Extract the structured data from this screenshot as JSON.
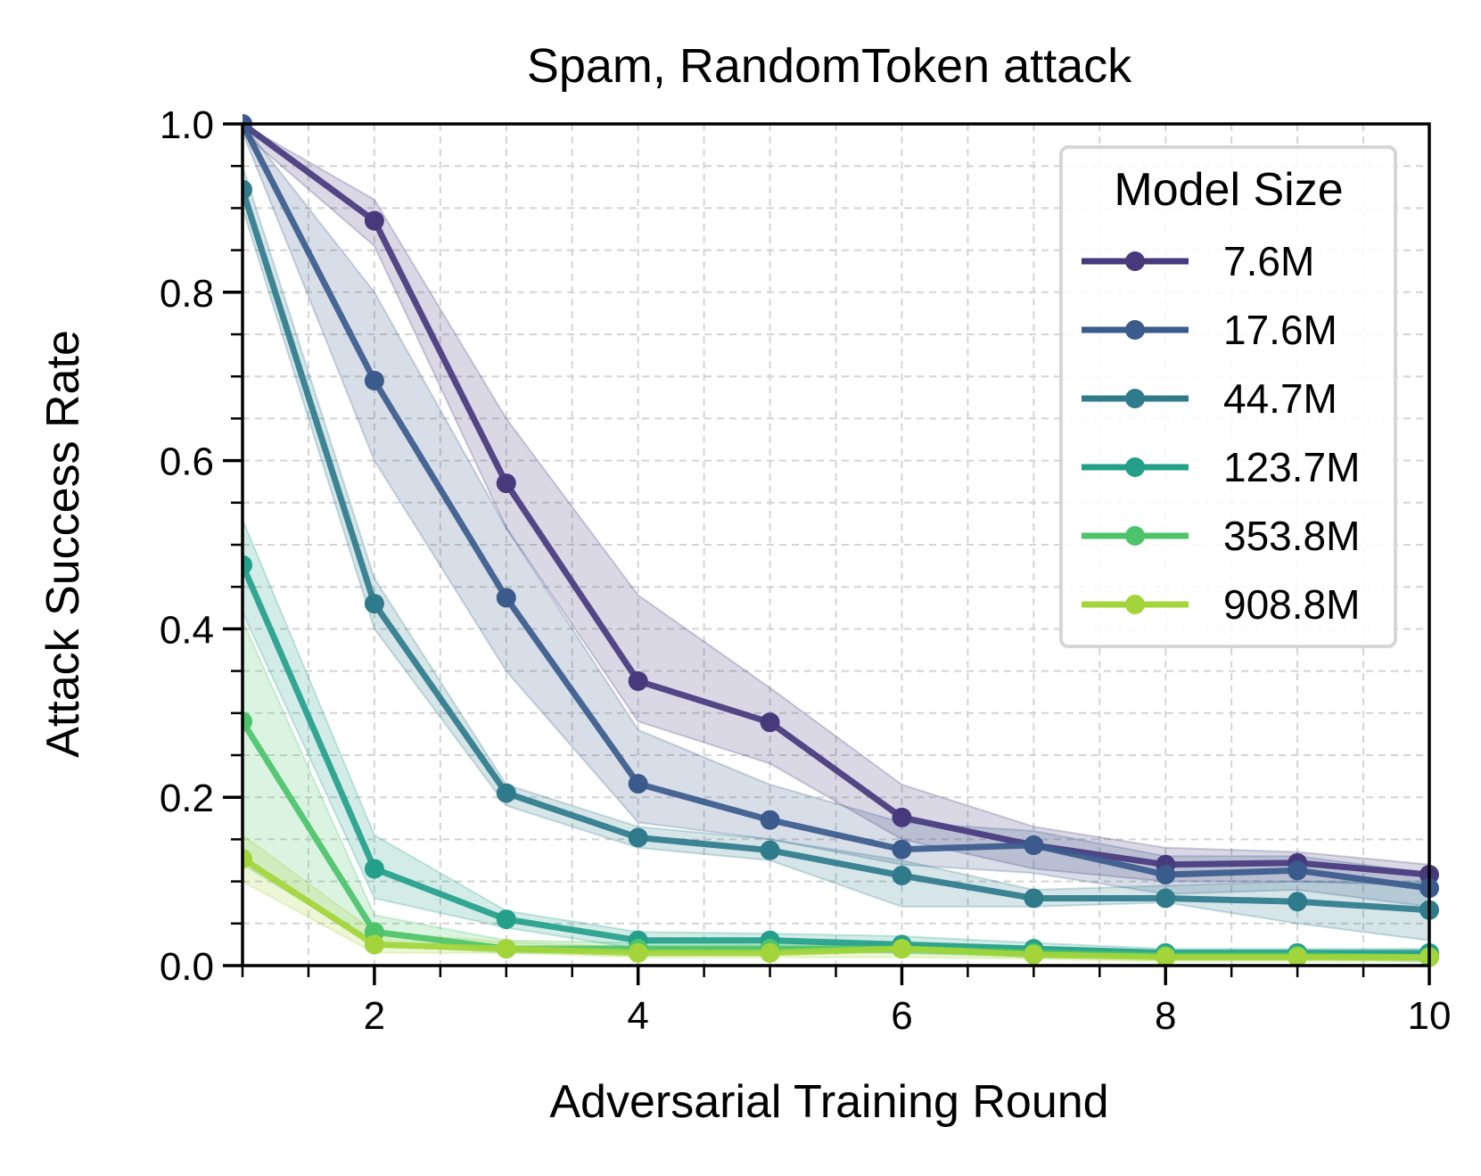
{
  "chart_data": {
    "type": "line",
    "title": "Spam, RandomToken attack",
    "xlabel": "Adversarial Training Round",
    "ylabel": "Attack Success Rate",
    "xlim": [
      1,
      10
    ],
    "ylim": [
      0,
      1
    ],
    "xticks": [
      2,
      4,
      6,
      8,
      10
    ],
    "yticks": [
      0.0,
      0.2,
      0.4,
      0.6,
      0.8,
      1.0
    ],
    "ytick_labels": [
      "0.0",
      "0.2",
      "0.4",
      "0.6",
      "0.8",
      "1.0"
    ],
    "grid": true,
    "legend": {
      "title": "Model Size",
      "position": "top-right"
    },
    "x": [
      1,
      2,
      3,
      4,
      5,
      6,
      7,
      8,
      9,
      10
    ],
    "series": [
      {
        "name": "7.6M",
        "color": "#463a7d",
        "values": [
          1.0,
          0.885,
          0.573,
          0.338,
          0.289,
          0.176,
          0.143,
          0.12,
          0.122,
          0.108
        ],
        "lower": [
          0.99,
          0.855,
          0.52,
          0.29,
          0.24,
          0.15,
          0.115,
          0.1,
          0.1,
          0.095
        ],
        "upper": [
          1.0,
          0.91,
          0.65,
          0.44,
          0.33,
          0.215,
          0.165,
          0.14,
          0.135,
          0.12
        ]
      },
      {
        "name": "17.6M",
        "color": "#3b5b8c",
        "values": [
          1.0,
          0.695,
          0.437,
          0.216,
          0.173,
          0.138,
          0.143,
          0.108,
          0.113,
          0.092
        ],
        "lower": [
          0.99,
          0.6,
          0.35,
          0.17,
          0.15,
          0.12,
          0.11,
          0.085,
          0.09,
          0.07
        ],
        "upper": [
          1.0,
          0.8,
          0.52,
          0.28,
          0.215,
          0.17,
          0.16,
          0.13,
          0.13,
          0.11
        ]
      },
      {
        "name": "44.7M",
        "color": "#2f7b8c",
        "values": [
          0.922,
          0.43,
          0.205,
          0.152,
          0.137,
          0.107,
          0.08,
          0.08,
          0.076,
          0.066
        ],
        "lower": [
          0.9,
          0.4,
          0.19,
          0.14,
          0.125,
          0.07,
          0.07,
          0.075,
          0.05,
          0.03
        ],
        "upper": [
          0.95,
          0.46,
          0.215,
          0.165,
          0.15,
          0.125,
          0.09,
          0.095,
          0.1,
          0.1
        ]
      },
      {
        "name": "123.7M",
        "color": "#24a08a",
        "values": [
          0.476,
          0.115,
          0.055,
          0.03,
          0.03,
          0.025,
          0.02,
          0.015,
          0.015,
          0.015
        ],
        "lower": [
          0.42,
          0.08,
          0.045,
          0.02,
          0.02,
          0.015,
          0.012,
          0.01,
          0.01,
          0.01
        ],
        "upper": [
          0.53,
          0.155,
          0.065,
          0.04,
          0.038,
          0.035,
          0.027,
          0.02,
          0.02,
          0.02
        ]
      },
      {
        "name": "353.8M",
        "color": "#4dc36b",
        "values": [
          0.29,
          0.04,
          0.02,
          0.02,
          0.02,
          0.02,
          0.015,
          0.012,
          0.012,
          0.01
        ],
        "lower": [
          0.12,
          0.025,
          0.015,
          0.015,
          0.015,
          0.015,
          0.01,
          0.008,
          0.008,
          0.005
        ],
        "upper": [
          0.41,
          0.06,
          0.03,
          0.027,
          0.025,
          0.028,
          0.022,
          0.018,
          0.018,
          0.015
        ]
      },
      {
        "name": "908.8M",
        "color": "#a3d53a",
        "values": [
          0.127,
          0.025,
          0.02,
          0.015,
          0.015,
          0.02,
          0.013,
          0.01,
          0.01,
          0.01
        ],
        "lower": [
          0.1,
          0.015,
          0.015,
          0.01,
          0.01,
          0.01,
          0.008,
          0.005,
          0.005,
          0.005
        ],
        "upper": [
          0.155,
          0.04,
          0.028,
          0.022,
          0.022,
          0.028,
          0.018,
          0.015,
          0.015,
          0.015
        ]
      }
    ]
  }
}
